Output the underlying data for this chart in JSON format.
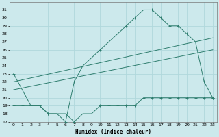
{
  "xlabel": "Humidex (Indice chaleur)",
  "xlim": [
    -0.5,
    23.5
  ],
  "ylim": [
    17,
    32
  ],
  "yticks": [
    17,
    18,
    19,
    20,
    21,
    22,
    23,
    24,
    25,
    26,
    27,
    28,
    29,
    30,
    31
  ],
  "xticks": [
    0,
    1,
    2,
    3,
    4,
    5,
    6,
    7,
    8,
    9,
    10,
    11,
    12,
    13,
    14,
    15,
    16,
    17,
    18,
    19,
    20,
    21,
    22,
    23
  ],
  "color": "#2e7d6e",
  "bg_color": "#cce9ec",
  "grid_color": "#b0d8dc",
  "curve_max": {
    "x": [
      0,
      1,
      2,
      3,
      4,
      5,
      6,
      7,
      8,
      9,
      10,
      11,
      12,
      13,
      14,
      15,
      16,
      17,
      18,
      19,
      20,
      21,
      22,
      23
    ],
    "y": [
      23,
      21,
      19,
      19,
      18,
      18,
      17,
      22,
      24,
      25,
      26,
      27,
      28,
      29,
      30,
      31,
      31,
      30,
      29,
      29,
      28,
      27,
      22,
      20
    ]
  },
  "curve_min": {
    "x": [
      0,
      1,
      2,
      3,
      4,
      5,
      6,
      7,
      8,
      9,
      10,
      11,
      12,
      13,
      14,
      15,
      16,
      17,
      18,
      19,
      20,
      21,
      22,
      23
    ],
    "y": [
      19,
      19,
      19,
      19,
      18,
      18,
      18,
      17,
      18,
      18,
      19,
      19,
      19,
      19,
      19,
      20,
      20,
      20,
      20,
      20,
      20,
      20,
      20,
      20
    ]
  },
  "trend_line1_x": [
    0,
    23
  ],
  "trend_line1_y": [
    22.0,
    27.5
  ],
  "trend_line2_x": [
    0,
    23
  ],
  "trend_line2_y": [
    21.0,
    26.0
  ]
}
